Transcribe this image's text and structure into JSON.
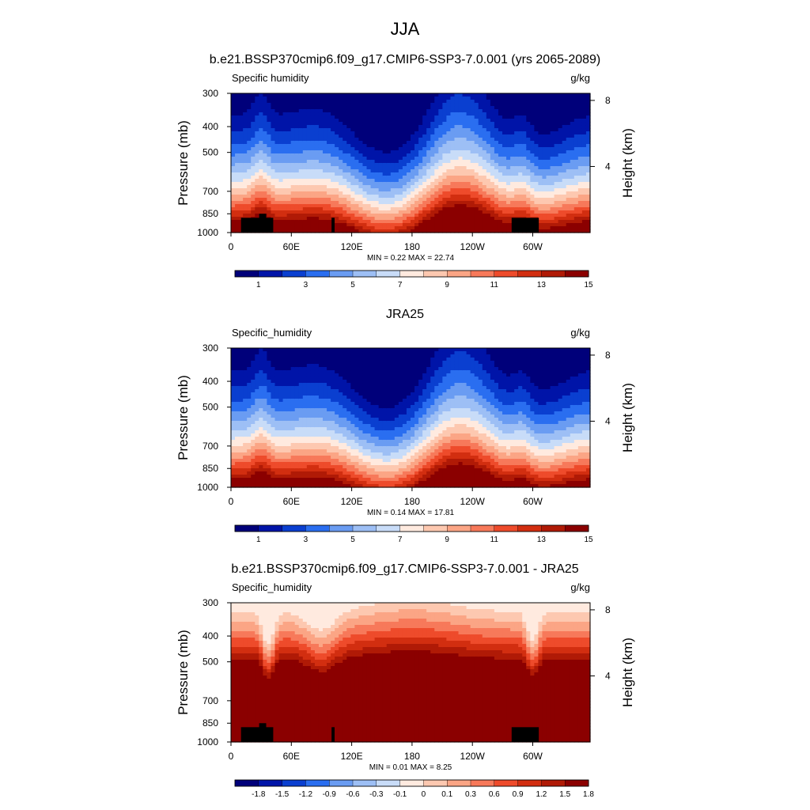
{
  "figure": {
    "title": "JJA"
  },
  "chart_data": [
    {
      "type": "heatmap",
      "title": "b.e21.BSSP370cmip6.f09_g17.CMIP6-SSP3-7.0.001 (yrs 2065-2089)",
      "left_label": "Specific humidity",
      "units": "g/kg",
      "ylabel": "Pressure (mb)",
      "ylabel_right": "Height (km)",
      "x_ticks": [
        "0",
        "60E",
        "120E",
        "180",
        "120W",
        "60W"
      ],
      "y_ticks": [
        "300",
        "400",
        "500",
        "700",
        "850",
        "1000"
      ],
      "right_ticks": [
        "8",
        "4"
      ],
      "ylim": [
        1000,
        300
      ],
      "xlim": [
        0,
        357
      ],
      "min_label": "MIN =   0.22  MAX =  22.74",
      "min": 0.22,
      "max": 22.74,
      "colorbar_labels": [
        "1",
        "3",
        "5",
        "7",
        "9",
        "11",
        "13",
        "15"
      ],
      "palette": "full",
      "terrain": true,
      "kind": "absolute",
      "profile_shift": 0
    },
    {
      "type": "heatmap",
      "title": "JRA25",
      "left_label": "Specific_humidity",
      "units": "g/kg",
      "ylabel": "Pressure (mb)",
      "ylabel_right": "Height (km)",
      "x_ticks": [
        "0",
        "60E",
        "120E",
        "180",
        "120W",
        "60W"
      ],
      "y_ticks": [
        "300",
        "400",
        "500",
        "700",
        "850",
        "1000"
      ],
      "right_ticks": [
        "8",
        "4"
      ],
      "ylim": [
        1000,
        300
      ],
      "xlim": [
        0,
        357
      ],
      "min_label": "MIN =   0.14  MAX =  17.81",
      "min": 0.14,
      "max": 17.81,
      "colorbar_labels": [
        "1",
        "3",
        "5",
        "7",
        "9",
        "11",
        "13",
        "15"
      ],
      "palette": "full",
      "terrain": false,
      "kind": "absolute",
      "profile_shift": 0.12
    },
    {
      "type": "heatmap",
      "title": "b.e21.BSSP370cmip6.f09_g17.CMIP6-SSP3-7.0.001 - JRA25",
      "left_label": "Specific_humidity",
      "units": "g/kg",
      "ylabel": "Pressure (mb)",
      "ylabel_right": "Height (km)",
      "x_ticks": [
        "0",
        "60E",
        "120E",
        "180",
        "120W",
        "60W"
      ],
      "y_ticks": [
        "300",
        "400",
        "500",
        "700",
        "850",
        "1000"
      ],
      "right_ticks": [
        "8",
        "4"
      ],
      "ylim": [
        1000,
        300
      ],
      "xlim": [
        0,
        357
      ],
      "min_label": "MIN =   0.01  MAX =   8.25",
      "min": 0.01,
      "max": 8.25,
      "colorbar_labels": [
        "-1.8",
        "-1.5",
        "-1.2",
        "-0.9",
        "-0.6",
        "-0.3",
        "-0.1",
        "0",
        "0.1",
        "0.3",
        "0.6",
        "0.9",
        "1.2",
        "1.5",
        "1.8"
      ],
      "palette": "full",
      "terrain": true,
      "kind": "difference",
      "profile_shift": 0
    }
  ],
  "colors": {
    "palette": [
      "#00007a",
      "#0014a8",
      "#0a3fd0",
      "#2a6ef0",
      "#6a9cf2",
      "#9dbff5",
      "#c8dcf8",
      "#ffeadf",
      "#fdc8b0",
      "#fba585",
      "#f7795a",
      "#ee4b2b",
      "#d22e10",
      "#b01a06",
      "#8b0000"
    ],
    "terrain": "#000000"
  }
}
